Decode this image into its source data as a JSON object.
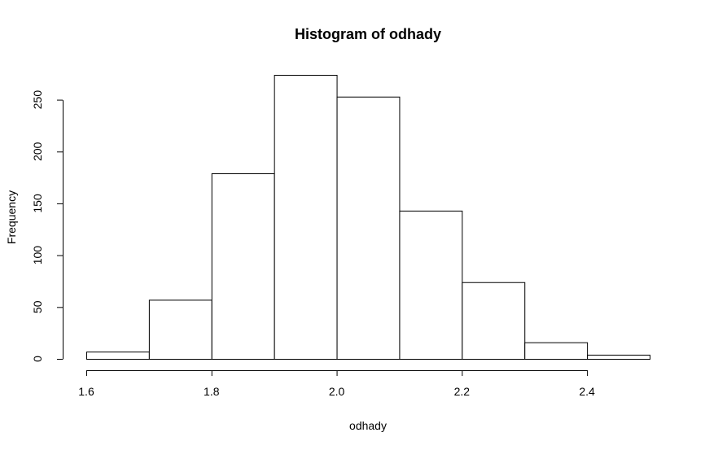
{
  "chart_data": {
    "type": "bar",
    "title": "Histogram of odhady",
    "xlabel": "odhady",
    "ylabel": "Frequency",
    "bin_edges": [
      1.6,
      1.7,
      1.8,
      1.9,
      2.0,
      2.1,
      2.2,
      2.3,
      2.4,
      2.5
    ],
    "values": [
      7,
      57,
      179,
      274,
      253,
      143,
      74,
      16,
      4
    ],
    "xlim": [
      1.6,
      2.5
    ],
    "ylim": [
      0,
      274
    ],
    "x_ticks": [
      1.6,
      1.8,
      2.0,
      2.2,
      2.4
    ],
    "x_tick_labels": [
      "1.6",
      "1.8",
      "2.0",
      "2.2",
      "2.4"
    ],
    "y_ticks": [
      0,
      50,
      100,
      150,
      200,
      250
    ],
    "y_tick_labels": [
      "0",
      "50",
      "100",
      "150",
      "200",
      "250"
    ],
    "grid": false,
    "colors": {
      "bar_fill": "#ffffff",
      "bar_stroke": "#000000"
    }
  }
}
